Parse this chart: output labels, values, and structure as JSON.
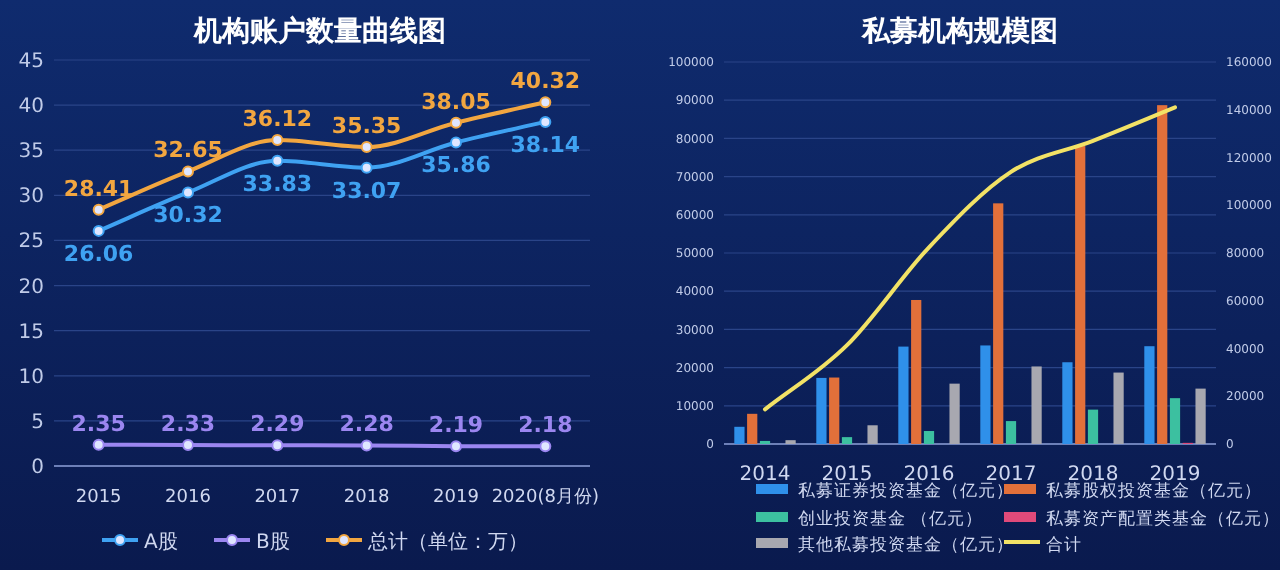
{
  "chart_data": [
    {
      "type": "line",
      "title": "机构账户数量曲线图",
      "categories": [
        "2015",
        "2016",
        "2017",
        "2018",
        "2019",
        "2020(8月份)"
      ],
      "series": [
        {
          "name": "A股",
          "color": "#3fa2f2",
          "values": [
            26.06,
            30.32,
            33.83,
            33.07,
            35.86,
            38.14
          ]
        },
        {
          "name": "B股",
          "color": "#9b86f0",
          "values": [
            2.35,
            2.33,
            2.29,
            2.28,
            2.19,
            2.18
          ]
        },
        {
          "name": "总计（单位：万）",
          "color": "#f2a640",
          "values": [
            28.41,
            32.65,
            36.12,
            35.35,
            38.05,
            40.32
          ]
        }
      ],
      "ylim": [
        0,
        45
      ],
      "yticks": [
        0,
        5,
        10,
        15,
        20,
        25,
        30,
        35,
        40,
        45
      ],
      "grid": "y",
      "legend": "bottom",
      "data_labels": true,
      "marker": "circle"
    },
    {
      "type": "bar",
      "title": "私募机构规模图",
      "categories": [
        "2014",
        "2015",
        "2016",
        "2017",
        "2018",
        "2019"
      ],
      "series": [
        {
          "name": "私募证券投资基金（亿元）",
          "color": "#2f90ea",
          "values": [
            4500,
            17300,
            25500,
            25800,
            21400,
            25600
          ]
        },
        {
          "name": "私募股权投资基金（亿元）",
          "color": "#e2703a",
          "values": [
            7900,
            17400,
            37700,
            63000,
            78000,
            88700
          ]
        },
        {
          "name": "创业投资基金 （亿元）",
          "color": "#3cc0a0",
          "values": [
            800,
            1800,
            3400,
            6000,
            9000,
            12000
          ]
        },
        {
          "name": "私募资产配置类基金（亿元）",
          "color": "#e04a7a",
          "values": [
            0,
            0,
            0,
            0,
            0,
            300
          ]
        },
        {
          "name": "其他私募投资基金（亿元）",
          "color": "#a8a8b0",
          "values": [
            1000,
            4900,
            15800,
            20300,
            18700,
            14500
          ]
        },
        {
          "name": "合计",
          "type": "line",
          "axis": "y2",
          "color": "#f2e266",
          "values": [
            14500,
            41400,
            82400,
            114000,
            127000,
            141000
          ]
        }
      ],
      "ylim": [
        0,
        100000
      ],
      "yticks": [
        0,
        10000,
        20000,
        30000,
        40000,
        50000,
        60000,
        70000,
        80000,
        90000,
        100000
      ],
      "y2lim": [
        0,
        160000
      ],
      "y2ticks": [
        0,
        20000,
        40000,
        60000,
        80000,
        100000,
        120000,
        140000,
        160000
      ],
      "grid": "y",
      "legend": "bottom"
    }
  ]
}
